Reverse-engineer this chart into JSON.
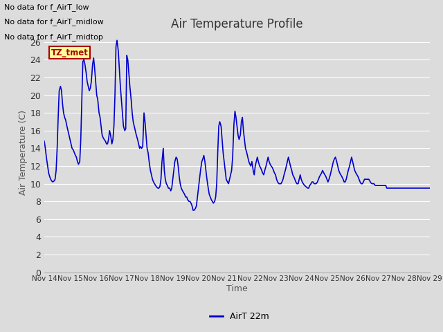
{
  "title": "Air Temperature Profile",
  "xlabel": "Time",
  "ylabel": "Air Temperature (C)",
  "ylim": [
    0,
    27
  ],
  "yticks": [
    0,
    2,
    4,
    6,
    8,
    10,
    12,
    14,
    16,
    18,
    20,
    22,
    24,
    26
  ],
  "line_color": "#0000cc",
  "line_width": 1.2,
  "background_color": "#dcdcdc",
  "plot_bg_color": "#dcdcdc",
  "grid_color": "#ffffff",
  "legend_label": "AirT 22m",
  "annotations": [
    "No data for f_AirT_low",
    "No data for f_AirT_midlow",
    "No data for f_AirT_midtop"
  ],
  "annotation_color": "#000000",
  "tz_tmet_color": "#aa0000",
  "tz_tmet_bg": "#ffff99",
  "x_labels": [
    "Nov 14",
    "Nov 15",
    "Nov 16",
    "Nov 17",
    "Nov 18",
    "Nov 19",
    "Nov 20",
    "Nov 21",
    "Nov 22",
    "Nov 23",
    "Nov 24",
    "Nov 25",
    "Nov 26",
    "Nov 27",
    "Nov 28",
    "Nov 29"
  ],
  "time_points": [
    0.0,
    0.04,
    0.08,
    0.13,
    0.17,
    0.21,
    0.25,
    0.29,
    0.33,
    0.38,
    0.42,
    0.46,
    0.5,
    0.54,
    0.58,
    0.63,
    0.67,
    0.71,
    0.75,
    0.79,
    0.83,
    0.88,
    0.92,
    0.96,
    1.0,
    1.04,
    1.08,
    1.13,
    1.17,
    1.21,
    1.25,
    1.29,
    1.33,
    1.38,
    1.42,
    1.46,
    1.5,
    1.54,
    1.58,
    1.63,
    1.67,
    1.71,
    1.75,
    1.79,
    1.83,
    1.88,
    1.92,
    1.96,
    2.0,
    2.04,
    2.08,
    2.13,
    2.17,
    2.21,
    2.25,
    2.29,
    2.33,
    2.38,
    2.42,
    2.46,
    2.5,
    2.54,
    2.58,
    2.63,
    2.67,
    2.71,
    2.75,
    2.79,
    2.83,
    2.88,
    2.92,
    2.96,
    3.0,
    3.04,
    3.08,
    3.13,
    3.17,
    3.21,
    3.25,
    3.29,
    3.33,
    3.38,
    3.42,
    3.46,
    3.5,
    3.54,
    3.58,
    3.63,
    3.67,
    3.71,
    3.75,
    3.79,
    3.83,
    3.88,
    3.92,
    3.96,
    4.0,
    4.04,
    4.08,
    4.13,
    4.17,
    4.21,
    4.25,
    4.29,
    4.33,
    4.38,
    4.42,
    4.46,
    4.5,
    4.54,
    4.58,
    4.63,
    4.67,
    4.71,
    4.75,
    4.79,
    4.83,
    4.88,
    4.92,
    4.96,
    5.0,
    5.04,
    5.08,
    5.13,
    5.17,
    5.21,
    5.25,
    5.29,
    5.33,
    5.38,
    5.42,
    5.46,
    5.5,
    5.54,
    5.58,
    5.63,
    5.67,
    5.71,
    5.75,
    5.79,
    5.83,
    5.88,
    5.92,
    5.96,
    6.0,
    6.04,
    6.08,
    6.13,
    6.17,
    6.21,
    6.25,
    6.29,
    6.33,
    6.38,
    6.42,
    6.46,
    6.5,
    6.54,
    6.58,
    6.63,
    6.67,
    6.71,
    6.75,
    6.79,
    6.83,
    6.88,
    6.92,
    6.96,
    7.0,
    7.04,
    7.08,
    7.13,
    7.17,
    7.21,
    7.25,
    7.29,
    7.33,
    7.38,
    7.42,
    7.46,
    7.5,
    7.54,
    7.58,
    7.63,
    7.67,
    7.71,
    7.75,
    7.79,
    7.83,
    7.88,
    7.92,
    7.96,
    8.0,
    8.04,
    8.08,
    8.13,
    8.17,
    8.21,
    8.25,
    8.29,
    8.33,
    8.38,
    8.42,
    8.46,
    8.5,
    8.54,
    8.58,
    8.63,
    8.67,
    8.71,
    8.75,
    8.79,
    8.83,
    8.88,
    8.92,
    8.96,
    9.0,
    9.04,
    9.08,
    9.13,
    9.17,
    9.21,
    9.25,
    9.29,
    9.33,
    9.38,
    9.42,
    9.46,
    9.5,
    9.54,
    9.58,
    9.63,
    9.67,
    9.71,
    9.75,
    9.79,
    9.83,
    9.88,
    9.92,
    9.96,
    10.0,
    10.04,
    10.08,
    10.13,
    10.17,
    10.21,
    10.25,
    10.29,
    10.33,
    10.38,
    10.42,
    10.46,
    10.5,
    10.54,
    10.58,
    10.63,
    10.67,
    10.71,
    10.75,
    10.79,
    10.83,
    10.88,
    10.92,
    10.96,
    11.0,
    11.04,
    11.08,
    11.13,
    11.17,
    11.21,
    11.25,
    11.29,
    11.33,
    11.38,
    11.42,
    11.46,
    11.5,
    11.54,
    11.58,
    11.63,
    11.67,
    11.71,
    11.75,
    11.79,
    11.83,
    11.88,
    11.92,
    11.96,
    12.0,
    12.04,
    12.08,
    12.13,
    12.17,
    12.21,
    12.25,
    12.29,
    12.33,
    12.38,
    12.42,
    12.46,
    12.5,
    12.54,
    12.58,
    12.63,
    12.67,
    12.71,
    12.75,
    12.79,
    12.83,
    12.88,
    12.92,
    12.96,
    13.0,
    13.04,
    13.08,
    13.13,
    13.17,
    13.21,
    13.25,
    13.29,
    13.33,
    13.38,
    13.42,
    13.46,
    13.5,
    13.54,
    13.58,
    13.63,
    13.67,
    13.71,
    13.75,
    13.79,
    13.83,
    13.88,
    13.92,
    13.96,
    14.0,
    14.04,
    14.08,
    14.13,
    14.17,
    14.21,
    14.25,
    14.29,
    14.33,
    14.38,
    14.42,
    14.46,
    14.5,
    14.54,
    14.58,
    14.63,
    14.67,
    14.71,
    14.75,
    14.79,
    14.83,
    14.88,
    14.92,
    14.96,
    15.0
  ],
  "temp_values": [
    14.8,
    14.0,
    13.0,
    12.0,
    11.2,
    10.8,
    10.5,
    10.3,
    10.2,
    10.3,
    10.5,
    11.5,
    14.0,
    17.5,
    20.5,
    21.0,
    20.5,
    19.0,
    18.0,
    17.5,
    17.2,
    16.5,
    16.0,
    15.5,
    15.0,
    14.5,
    14.0,
    13.8,
    13.5,
    13.2,
    13.0,
    12.5,
    12.2,
    12.5,
    15.0,
    19.5,
    23.8,
    24.0,
    23.5,
    22.5,
    21.5,
    21.0,
    20.5,
    20.8,
    21.5,
    23.5,
    24.2,
    23.0,
    21.5,
    20.0,
    19.5,
    18.0,
    17.5,
    16.5,
    15.5,
    15.2,
    15.0,
    14.8,
    14.5,
    14.5,
    15.0,
    16.0,
    15.5,
    14.5,
    15.0,
    16.5,
    20.0,
    25.5,
    26.2,
    25.0,
    23.0,
    21.0,
    19.5,
    18.0,
    16.5,
    16.0,
    16.2,
    24.5,
    24.0,
    22.5,
    21.0,
    19.5,
    18.0,
    17.0,
    16.5,
    16.0,
    15.5,
    15.0,
    14.5,
    14.0,
    14.2,
    14.0,
    14.2,
    18.0,
    17.0,
    15.5,
    14.0,
    13.5,
    12.5,
    11.5,
    11.0,
    10.5,
    10.2,
    10.0,
    9.8,
    9.6,
    9.5,
    9.5,
    9.7,
    10.5,
    12.5,
    14.0,
    11.5,
    10.5,
    10.0,
    9.8,
    9.5,
    9.5,
    9.2,
    9.5,
    10.5,
    11.5,
    12.5,
    13.0,
    12.8,
    12.0,
    10.8,
    10.0,
    9.5,
    9.2,
    9.0,
    8.8,
    8.5,
    8.5,
    8.2,
    8.0,
    8.0,
    7.8,
    7.5,
    7.0,
    7.0,
    7.2,
    7.5,
    8.5,
    9.5,
    10.5,
    11.5,
    12.5,
    12.8,
    13.2,
    12.5,
    11.5,
    10.5,
    9.5,
    8.8,
    8.5,
    8.2,
    8.0,
    7.8,
    8.0,
    8.5,
    10.0,
    13.5,
    16.5,
    17.0,
    16.5,
    15.0,
    13.5,
    12.5,
    11.5,
    10.5,
    10.2,
    10.0,
    10.5,
    11.0,
    11.5,
    13.0,
    16.7,
    18.2,
    17.5,
    16.5,
    15.5,
    15.0,
    15.5,
    17.0,
    17.5,
    16.0,
    15.0,
    14.0,
    13.5,
    13.0,
    12.5,
    12.2,
    12.0,
    12.5,
    11.5,
    11.0,
    12.0,
    12.5,
    13.0,
    12.5,
    12.0,
    11.8,
    11.5,
    11.2,
    11.0,
    11.5,
    12.0,
    12.5,
    13.0,
    12.5,
    12.2,
    12.0,
    11.8,
    11.5,
    11.2,
    11.0,
    10.5,
    10.2,
    10.0,
    10.0,
    10.0,
    10.2,
    10.5,
    11.0,
    11.5,
    12.0,
    12.5,
    13.0,
    12.5,
    12.0,
    11.5,
    11.0,
    10.8,
    10.5,
    10.2,
    10.0,
    10.0,
    10.5,
    11.0,
    10.5,
    10.2,
    10.0,
    9.8,
    9.7,
    9.6,
    9.5,
    9.5,
    9.8,
    10.0,
    10.2,
    10.2,
    10.0,
    10.0,
    10.0,
    10.2,
    10.5,
    10.8,
    11.0,
    11.2,
    11.5,
    11.2,
    11.0,
    10.8,
    10.5,
    10.2,
    10.5,
    11.0,
    11.5,
    12.0,
    12.5,
    12.8,
    13.0,
    12.5,
    12.0,
    11.5,
    11.2,
    11.0,
    10.8,
    10.5,
    10.2,
    10.2,
    10.5,
    11.0,
    11.5,
    12.0,
    12.5,
    13.0,
    12.5,
    12.0,
    11.5,
    11.2,
    11.0,
    10.8,
    10.5,
    10.2,
    10.0,
    10.0,
    10.2,
    10.5,
    10.5,
    10.5,
    10.5,
    10.5,
    10.3,
    10.1,
    10.0,
    10.0,
    10.0,
    9.8,
    9.8,
    9.8,
    9.8,
    9.8,
    9.8,
    9.8,
    9.8,
    9.8,
    9.8,
    9.8,
    9.5,
    9.5,
    9.5,
    9.5,
    9.5,
    9.5,
    9.5,
    9.5,
    9.5,
    9.5,
    9.5,
    9.5,
    9.5,
    9.5,
    9.5,
    9.5,
    9.5,
    9.5,
    9.5,
    9.5,
    9.5,
    9.5,
    9.5,
    9.5,
    9.5,
    9.5,
    9.5,
    9.5,
    9.5,
    9.5,
    9.5,
    9.5,
    9.5,
    9.5,
    9.5,
    9.5,
    9.5,
    9.5,
    9.5,
    9.5,
    9.5
  ]
}
